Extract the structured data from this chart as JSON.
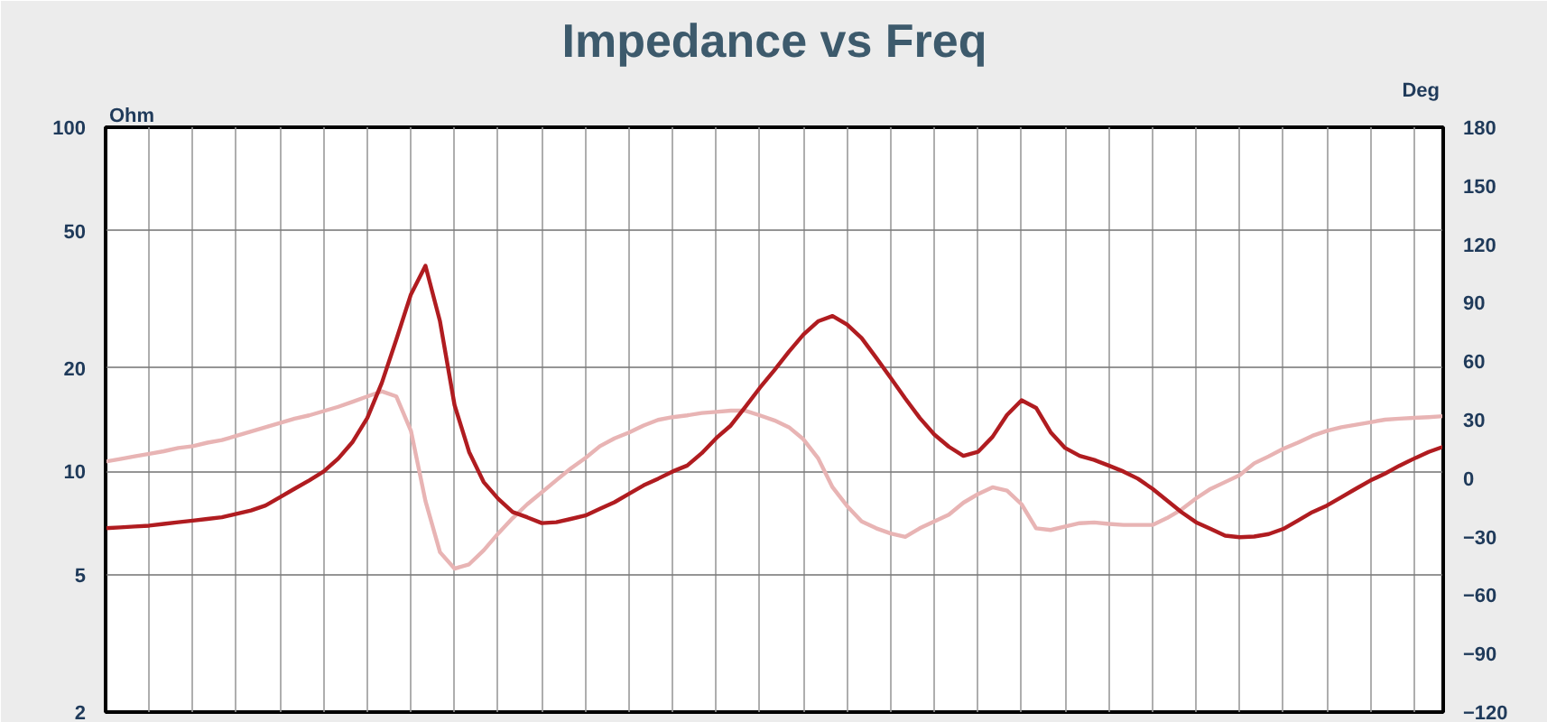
{
  "chart_data": {
    "type": "line",
    "title": "Impedance vs Freq",
    "ylabel": "Ohm",
    "y2label": "Deg",
    "categories": [
      null,
      null,
      null,
      null,
      null,
      null,
      null,
      null,
      null,
      null,
      null,
      null,
      null,
      null,
      null,
      null,
      null,
      null,
      null,
      null,
      null,
      null,
      null,
      null,
      null,
      null,
      null,
      null,
      null,
      null,
      null,
      null,
      null,
      null,
      null,
      null,
      null,
      null,
      null,
      null,
      null,
      null,
      null,
      null,
      null,
      null,
      null,
      null,
      null,
      null,
      null,
      null,
      null,
      null,
      null,
      null,
      null,
      null,
      null,
      null,
      null,
      null,
      null,
      null,
      null,
      null,
      null,
      null,
      null,
      null,
      null,
      null,
      null,
      null,
      null,
      null,
      null,
      null,
      null,
      null,
      null,
      null,
      null,
      null,
      null,
      null,
      null,
      null,
      null,
      null,
      null,
      null,
      null
    ],
    "series": [
      {
        "color": "#e8b4b4",
        "axis": "y2",
        "values": [
          8.5,
          9.8,
          11.2,
          12.5,
          13.8,
          15.5,
          16.4,
          18.2,
          19.5,
          21.7,
          23.9,
          26.1,
          28.3,
          30.5,
          32.2,
          34.4,
          36.6,
          39.2,
          41.9,
          44.5,
          41.9,
          24.3,
          -11.7,
          -38.0,
          -46.4,
          -44.2,
          -37.1,
          -28.4,
          -20.5,
          -13.4,
          -7.3,
          -1.1,
          5.0,
          10.3,
          16.4,
          20.4,
          23.4,
          27.0,
          29.9,
          31.3,
          32.2,
          33.4,
          34.0,
          34.6,
          34.6,
          32.2,
          29.6,
          26.1,
          19.9,
          10.3,
          -4.7,
          -14.3,
          -22.2,
          -25.7,
          -28.4,
          -30.1,
          -25.7,
          -22.2,
          -18.7,
          -12.6,
          -8.2,
          -4.7,
          -6.4,
          -13.4,
          -25.7,
          -26.6,
          -24.8,
          -23.1,
          -22.7,
          -23.5,
          -24.0,
          -24.0,
          -24.0,
          -20.5,
          -16.1,
          -10.4,
          -5.5,
          -2.0,
          1.5,
          7.6,
          11.2,
          15.1,
          18.2,
          21.7,
          24.3,
          26.1,
          27.4,
          28.7,
          30.0,
          30.5,
          30.9,
          31.3,
          31.8
        ]
      },
      {
        "color": "#b01c20",
        "values": [
          6.84,
          6.88,
          6.92,
          6.96,
          7.04,
          7.12,
          7.2,
          7.28,
          7.36,
          7.53,
          7.7,
          7.96,
          8.42,
          8.91,
          9.42,
          10.0,
          10.9,
          12.2,
          14.3,
          18.1,
          24.2,
          32.7,
          39.6,
          27.3,
          15.6,
          11.4,
          9.32,
          8.33,
          7.62,
          7.36,
          7.08,
          7.12,
          7.28,
          7.45,
          7.79,
          8.14,
          8.61,
          9.11,
          9.53,
          10.0,
          10.4,
          11.3,
          12.5,
          13.6,
          15.4,
          17.5,
          19.7,
          22.3,
          25.0,
          27.3,
          28.3,
          26.7,
          24.4,
          21.4,
          18.7,
          16.3,
          14.3,
          12.8,
          11.8,
          11.1,
          11.4,
          12.6,
          14.6,
          16.1,
          15.3,
          13.0,
          11.7,
          11.1,
          10.8,
          10.4,
          10.0,
          9.53,
          8.91,
          8.24,
          7.62,
          7.12,
          6.81,
          6.51,
          6.44,
          6.47,
          6.58,
          6.81,
          7.2,
          7.62,
          7.96,
          8.42,
          8.91,
          9.42,
          9.86,
          10.4,
          10.9,
          11.4,
          11.8
        ]
      }
    ],
    "log": "y",
    "ylim": [
      2,
      100
    ],
    "yticks": [
      2,
      5,
      10,
      20,
      50,
      100
    ],
    "y2lim": [
      -120,
      180
    ],
    "y2ticks": [
      -120,
      -90,
      -60,
      -30,
      0,
      30,
      60,
      90,
      120,
      150,
      180
    ],
    "grid": true,
    "line_style": "solid",
    "marker": "none",
    "tick_labels": "y"
  }
}
